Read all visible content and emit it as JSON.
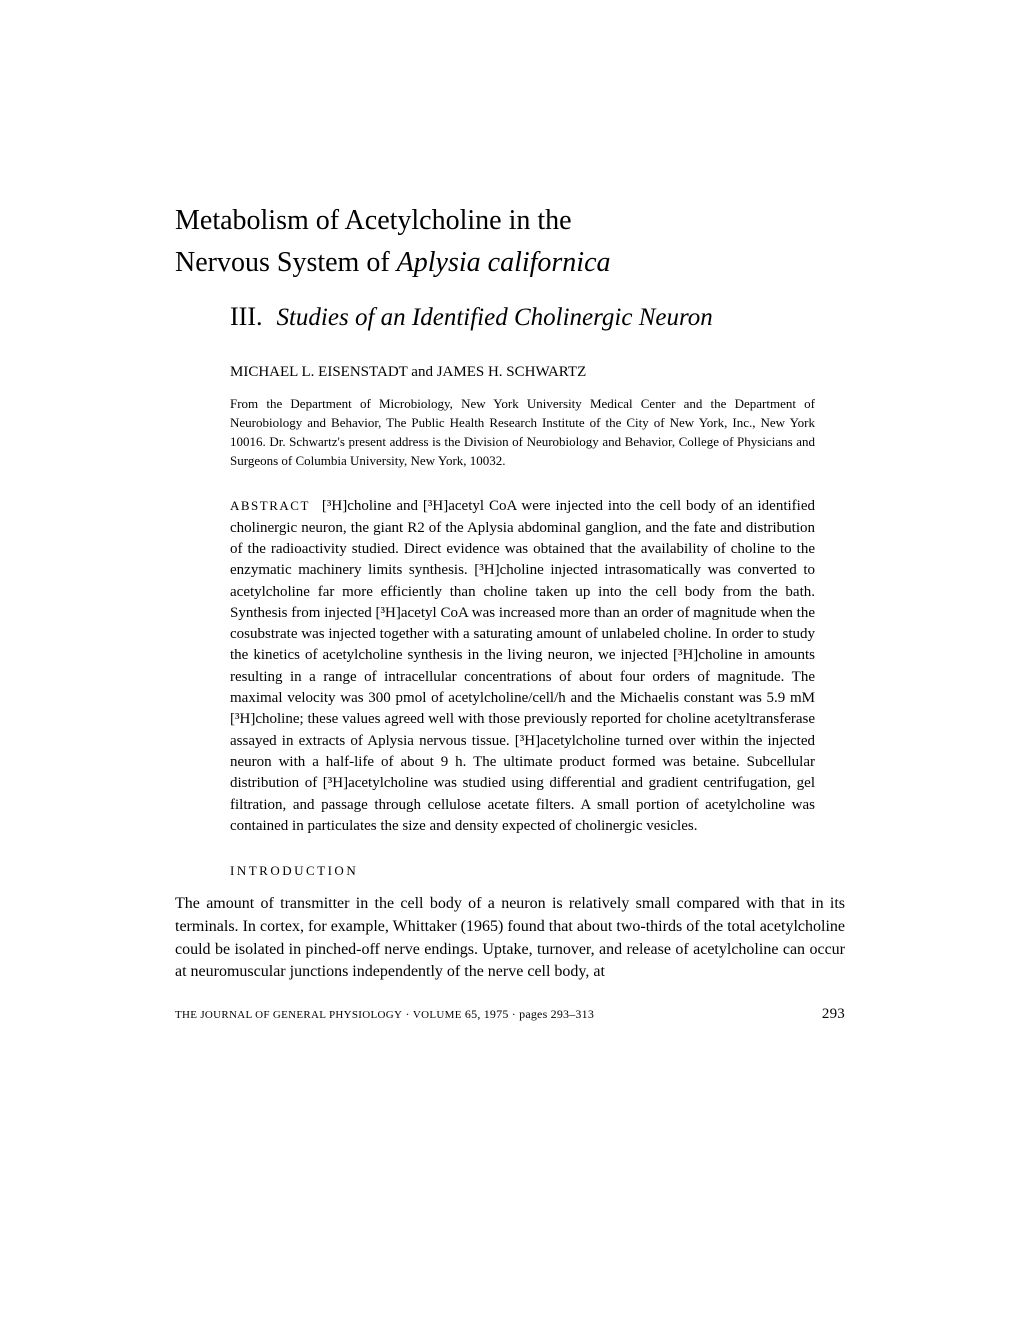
{
  "title": {
    "line1": "Metabolism of Acetylcholine in the",
    "line2_plain": "Nervous System of ",
    "line2_italic": "Aplysia californica"
  },
  "subtitle": {
    "number": "III.",
    "text": "Studies of an Identified Cholinergic Neuron"
  },
  "authors": "MICHAEL L. EISENSTADT and JAMES H. SCHWARTZ",
  "affiliation": "From the Department of Microbiology, New York University Medical Center and the Department of Neurobiology and Behavior, The Public Health Research Institute of the City of New York, Inc., New York 10016. Dr. Schwartz's present address is the Division of Neurobiology and Behavior, College of Physicians and Surgeons of Columbia University, New York, 10032.",
  "abstract_label": "ABSTRACT",
  "abstract_text": "[³H]choline and [³H]acetyl CoA were injected into the cell body of an identified cholinergic neuron, the giant R2 of the Aplysia abdominal ganglion, and the fate and distribution of the radioactivity studied. Direct evidence was obtained that the availability of choline to the enzymatic machinery limits synthesis. [³H]choline injected intrasomatically was converted to acetylcholine far more efficiently than choline taken up into the cell body from the bath. Synthesis from injected [³H]acetyl CoA was increased more than an order of magnitude when the cosubstrate was injected together with a saturating amount of unlabeled choline. In order to study the kinetics of acetylcholine synthesis in the living neuron, we injected [³H]choline in amounts resulting in a range of intracellular concentrations of about four orders of magnitude. The maximal velocity was 300 pmol of acetylcholine/cell/h and the Michaelis constant was 5.9 mM [³H]choline; these values agreed well with those previously reported for choline acetyltransferase assayed in extracts of Aplysia nervous tissue. [³H]acetylcholine turned over within the injected neuron with a half-life of about 9 h. The ultimate product formed was betaine. Subcellular distribution of [³H]acetylcholine was studied using differential and gradient centrifugation, gel filtration, and passage through cellulose acetate filters. A small portion of acetylcholine was contained in particulates the size and density expected of cholinergic vesicles.",
  "section_heading": "INTRODUCTION",
  "body_paragraph": "The amount of transmitter in the cell body of a neuron is relatively small compared with that in its terminals. In cortex, for example, Whittaker (1965) found that about two-thirds of the total acetylcholine could be isolated in pinched-off nerve endings. Uptake, turnover, and release of acetylcholine can occur at neuromuscular junctions independently of the nerve cell body, at",
  "footer": {
    "journal_caps": "THE JOURNAL OF GENERAL PHYSIOLOGY",
    "dot1": " · ",
    "volume_caps": "VOLUME",
    "volume_num": " 65, 1975 · pages 293–313",
    "page_number": "293"
  }
}
